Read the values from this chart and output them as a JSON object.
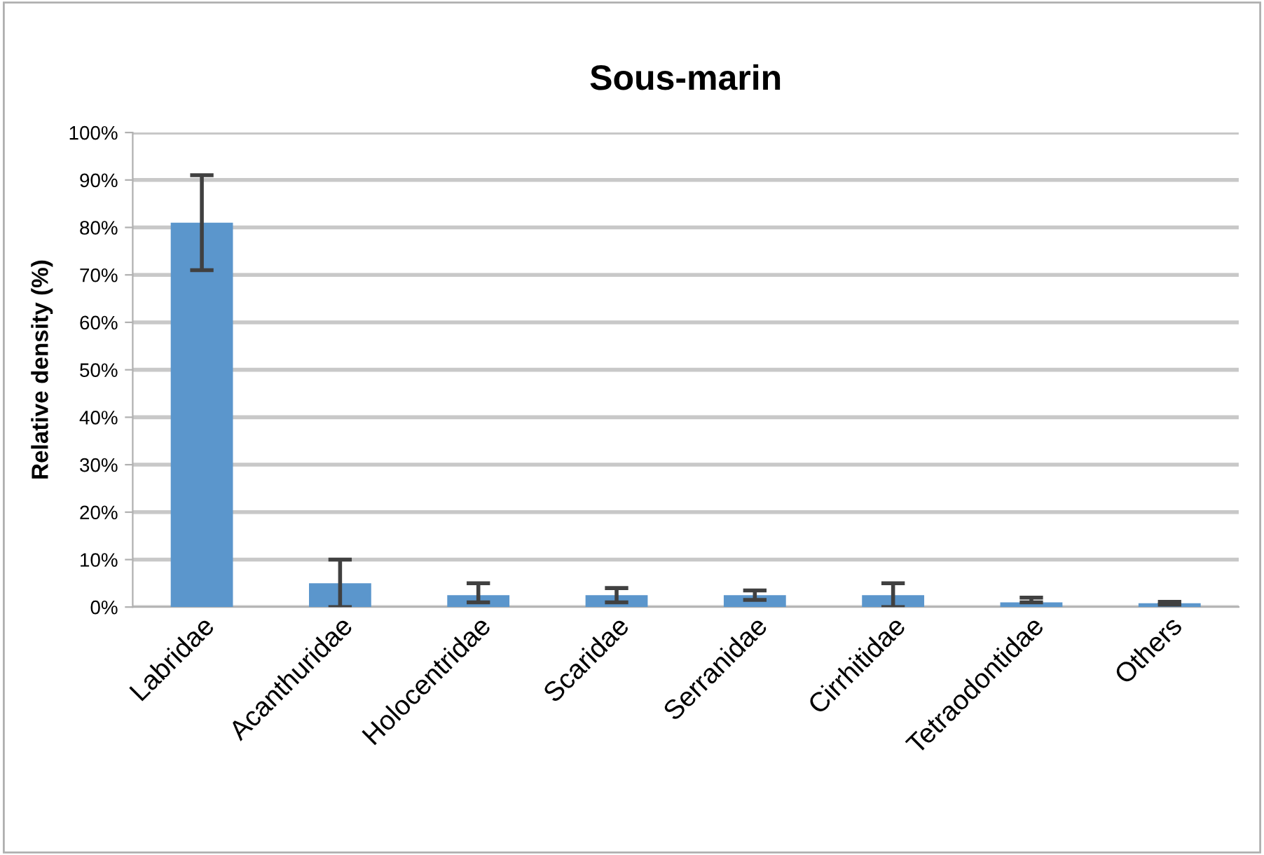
{
  "chart_data": {
    "type": "bar",
    "title": "Sous-marin",
    "ylabel": "Relative density (%)",
    "categories": [
      "Labridae",
      "Acanthuridae",
      "Holocentridae",
      "Scaridae",
      "Serranidae",
      "Cirrhitidae",
      "Tetraodontidae",
      "Others"
    ],
    "values": [
      81,
      5,
      2.5,
      2.5,
      2.5,
      2.5,
      1,
      0.8
    ],
    "errors": [
      10,
      5,
      [
        1,
        5
      ],
      1.5,
      1,
      2.5,
      [
        1,
        2
      ],
      0.3
    ],
    "color": "#5b96cc",
    "ylim": [
      0,
      100
    ],
    "yticks": [
      {
        "value": 0,
        "label": "0%"
      },
      {
        "value": 10,
        "label": "10%"
      },
      {
        "value": 20,
        "label": "20%"
      },
      {
        "value": 30,
        "label": "30%"
      },
      {
        "value": 40,
        "label": "40%"
      },
      {
        "value": 50,
        "label": "50%"
      },
      {
        "value": 60,
        "label": "60%"
      },
      {
        "value": 70,
        "label": "70%"
      },
      {
        "value": 80,
        "label": "80%"
      },
      {
        "value": 90,
        "label": "90%"
      },
      {
        "value": 100,
        "label": "100%"
      }
    ],
    "grid": "y"
  }
}
